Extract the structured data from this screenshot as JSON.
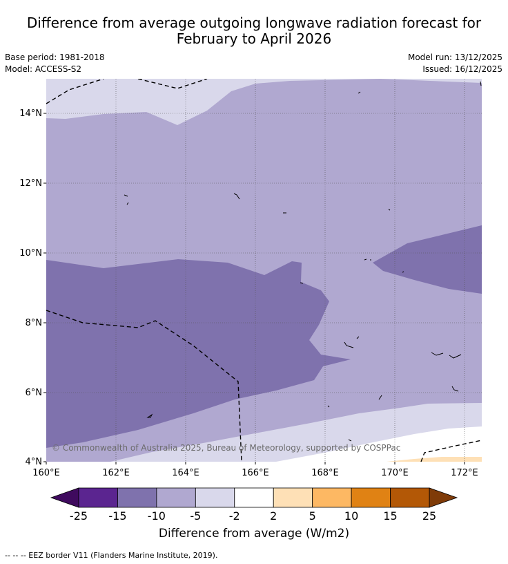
{
  "title_line1": "Difference from average outgoing longwave radiation forecast for",
  "title_line2": "February to April 2026",
  "base_period": "Base period: 1981-2018",
  "model": "Model: ACCESS-S2",
  "model_run": "Model run: 13/12/2025",
  "issued": "Issued: 16/12/2025",
  "copyright": "© Commonwealth of Australia 2025, Bureau of Meteorology, supported by COSPPac",
  "lon_ticks": [
    "160°E",
    "162°E",
    "164°E",
    "166°E",
    "168°E",
    "170°E",
    "172°E"
  ],
  "lat_ticks": [
    "14°N",
    "12°N",
    "10°N",
    "8°N",
    "6°N",
    "4°N"
  ],
  "colorbar": {
    "labels": [
      "-25",
      "-15",
      "-10",
      "-5",
      "-2",
      "2",
      "5",
      "10",
      "15",
      "25"
    ],
    "colors": [
      "#5b2590",
      "#7f72ad",
      "#b0a8d0",
      "#d9d8eb",
      "#ffffff",
      "#fee0b6",
      "#fdb863",
      "#e08214",
      "#b35806"
    ],
    "under_color": "#3f0a5e",
    "over_color": "#7f3b08",
    "title": "Difference from average (W/m2)"
  },
  "legend_footer": "--  --  -- EEZ border V11 (Flanders Marine Institute, 2019).",
  "colors": {
    "class_m2_m5": "#d9d8eb",
    "class_m5_m10": "#b0a8d0",
    "class_m10_m15": "#7f72ad",
    "class_2_5": "#fee0b6"
  }
}
